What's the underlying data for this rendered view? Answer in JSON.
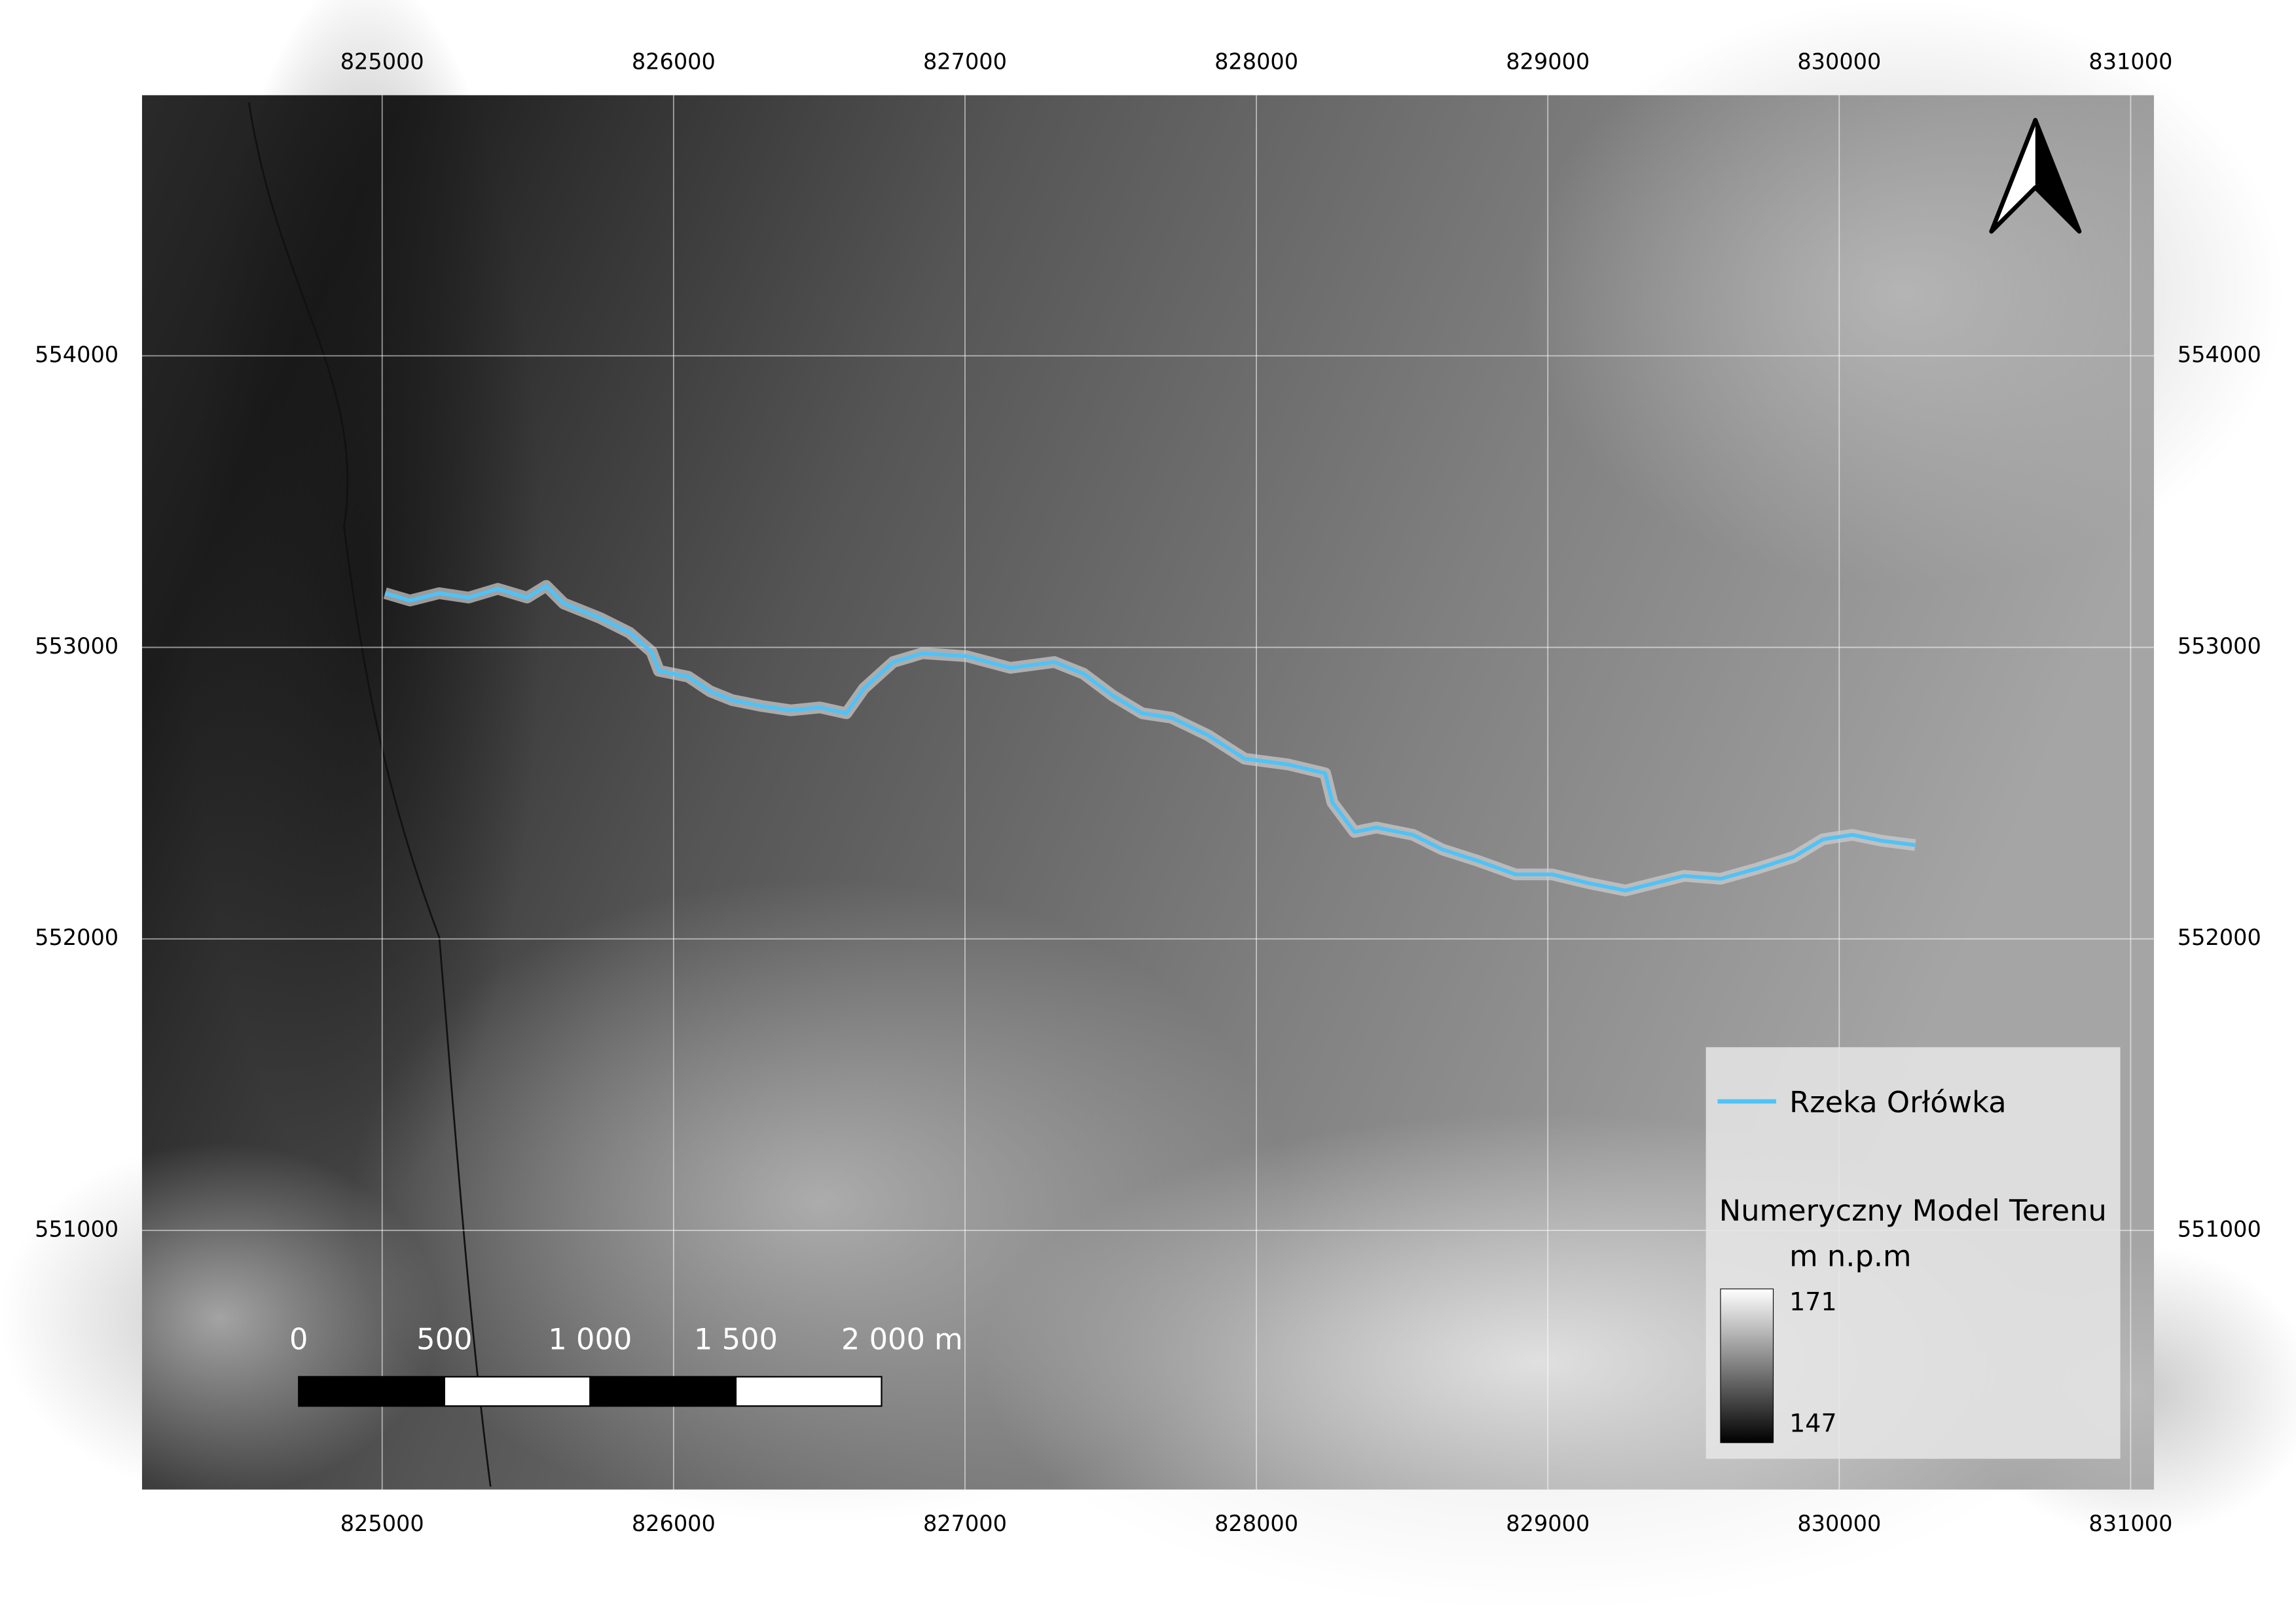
{
  "map": {
    "xlim": [
      824176,
      831080
    ],
    "ylim": [
      550111,
      554894
    ],
    "xticks": [
      825000,
      826000,
      827000,
      828000,
      829000,
      830000,
      831000
    ],
    "yticks": [
      551000,
      552000,
      553000,
      554000
    ],
    "grid": true,
    "legend": {
      "items": [
        {
          "label": "Rzeka Orłówka",
          "color": "#4fc3f7"
        }
      ],
      "raster_title": "Numeryczny Model Terenu",
      "raster_unit": "m n.p.m",
      "max": 171,
      "min": 147
    },
    "scale_bar": {
      "ticks": [
        0,
        500,
        {
          "value": 1000,
          "label": "1 000"
        },
        {
          "value": 1500,
          "label": "1 500"
        },
        {
          "value": 2000,
          "label": "2 000 m"
        }
      ]
    }
  }
}
